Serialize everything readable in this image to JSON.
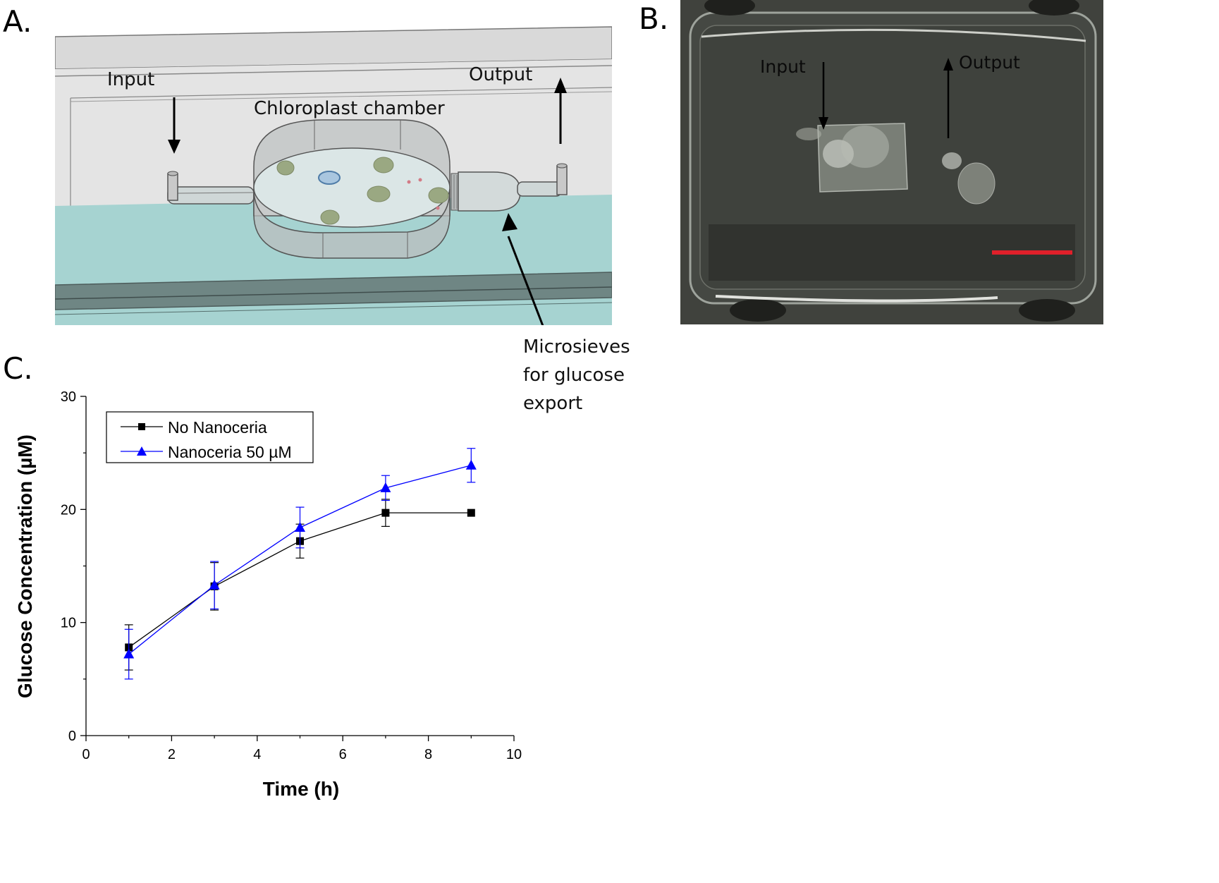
{
  "panels": {
    "a": {
      "label": "A.",
      "input_label": "Input",
      "output_label": "Output",
      "chamber_label": "Chloroplast chamber",
      "microsieve_lines": [
        "Microsieves",
        "for glucose",
        "export"
      ]
    },
    "b": {
      "label": "B.",
      "input_label": "Input",
      "output_label": "Output",
      "scale_bar_color": "#e0202a"
    },
    "c": {
      "label": "C."
    }
  },
  "chart_data": {
    "type": "line",
    "title": "",
    "xlabel": "Time (h)",
    "ylabel": "Glucose Concentration (µM)",
    "xlim": [
      0,
      10
    ],
    "ylim": [
      0,
      30
    ],
    "x_ticks": [
      "0",
      "2",
      "4",
      "6",
      "8",
      "10"
    ],
    "y_ticks": [
      "0",
      "10",
      "20",
      "30"
    ],
    "grid": false,
    "legend_position": "top-left",
    "x": [
      1,
      3,
      5,
      7,
      9
    ],
    "series": [
      {
        "name": "No Nanoceria",
        "marker": "square",
        "color": "#000000",
        "values": [
          7.8,
          13.2,
          17.2,
          19.7,
          19.7
        ],
        "errors": [
          2.0,
          2.1,
          1.5,
          1.2,
          0
        ]
      },
      {
        "name": "Nanoceria 50 µM",
        "marker": "triangle",
        "color": "#0000ff",
        "values": [
          7.2,
          13.3,
          18.4,
          21.9,
          23.9
        ],
        "errors": [
          2.2,
          2.1,
          1.8,
          1.1,
          1.5
        ]
      }
    ]
  }
}
